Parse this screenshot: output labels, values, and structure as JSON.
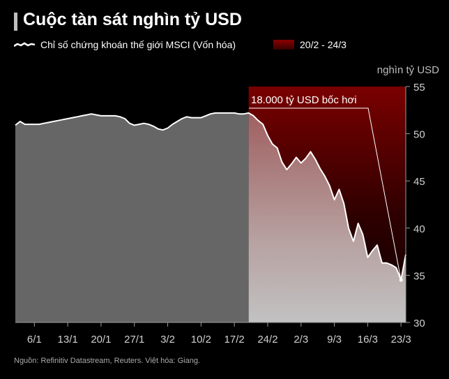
{
  "header": {
    "title": "Cuộc tàn sát nghìn tỷ USD"
  },
  "legend": {
    "line_label": "Chỉ số chứng khoán thế giới MSCI (Vốn hóa)",
    "range_label": "20/2 - 24/3"
  },
  "footer": {
    "source": "Nguồn: Refinitiv Datastream, Reuters. Việt hóa: Giang."
  },
  "colors": {
    "background": "#000000",
    "area_fill": "#666666",
    "line": "#ffffff",
    "highlight_top": "#8a0000",
    "highlight_bottom": "#c8c8c8"
  },
  "chart_data": {
    "type": "area",
    "ylabel": "nghìn tỷ USD",
    "ylim": [
      30,
      55
    ],
    "yticks": [
      30,
      35,
      40,
      45,
      50,
      55
    ],
    "xticks": [
      "6/1",
      "13/1",
      "20/1",
      "27/1",
      "3/2",
      "10/2",
      "17/2",
      "24/2",
      "2/3",
      "9/3",
      "16/3",
      "23/3"
    ],
    "grid": false,
    "legend_position": "top-left",
    "highlight_range": [
      "20/2",
      "24/3"
    ],
    "annotation": "18.000 tỷ USD bốc hơi",
    "x": [
      "2/1",
      "3/1",
      "4/1",
      "5/1",
      "6/1",
      "7/1",
      "8/1",
      "9/1",
      "10/1",
      "11/1",
      "12/1",
      "13/1",
      "14/1",
      "15/1",
      "16/1",
      "17/1",
      "18/1",
      "19/1",
      "20/1",
      "21/1",
      "22/1",
      "23/1",
      "24/1",
      "25/1",
      "26/1",
      "27/1",
      "28/1",
      "29/1",
      "30/1",
      "31/1",
      "1/2",
      "2/2",
      "3/2",
      "4/2",
      "5/2",
      "6/2",
      "7/2",
      "8/2",
      "9/2",
      "10/2",
      "11/2",
      "12/2",
      "13/2",
      "14/2",
      "15/2",
      "16/2",
      "17/2",
      "18/2",
      "19/2",
      "20/2",
      "21/2",
      "22/2",
      "23/2",
      "24/2",
      "25/2",
      "26/2",
      "27/2",
      "28/2",
      "29/2",
      "1/3",
      "2/3",
      "3/3",
      "4/3",
      "5/3",
      "6/3",
      "7/3",
      "8/3",
      "9/3",
      "10/3",
      "11/3",
      "12/3",
      "13/3",
      "14/3",
      "15/3",
      "16/3",
      "17/3",
      "18/3",
      "19/3",
      "20/3",
      "21/3",
      "22/3",
      "23/3",
      "24/3"
    ],
    "values": [
      50.9,
      51.3,
      51.0,
      51.0,
      51.0,
      51.0,
      51.1,
      51.2,
      51.3,
      51.4,
      51.5,
      51.6,
      51.7,
      51.8,
      51.9,
      52.0,
      52.1,
      52.0,
      51.9,
      51.9,
      51.9,
      51.9,
      51.8,
      51.6,
      51.1,
      50.9,
      51.0,
      51.1,
      51.0,
      50.8,
      50.5,
      50.4,
      50.6,
      51.0,
      51.3,
      51.6,
      51.8,
      51.7,
      51.7,
      51.7,
      51.9,
      52.1,
      52.2,
      52.2,
      52.2,
      52.2,
      52.2,
      52.1,
      52.1,
      52.2,
      51.9,
      51.4,
      51.0,
      49.8,
      48.9,
      48.5,
      47.0,
      46.2,
      46.8,
      47.5,
      46.9,
      47.4,
      48.1,
      47.3,
      46.3,
      45.5,
      44.5,
      43.0,
      44.1,
      42.6,
      40.0,
      38.6,
      40.5,
      39.3,
      36.9,
      37.6,
      38.2,
      36.3,
      36.3,
      36.1,
      35.8,
      34.5,
      37.2
    ]
  }
}
